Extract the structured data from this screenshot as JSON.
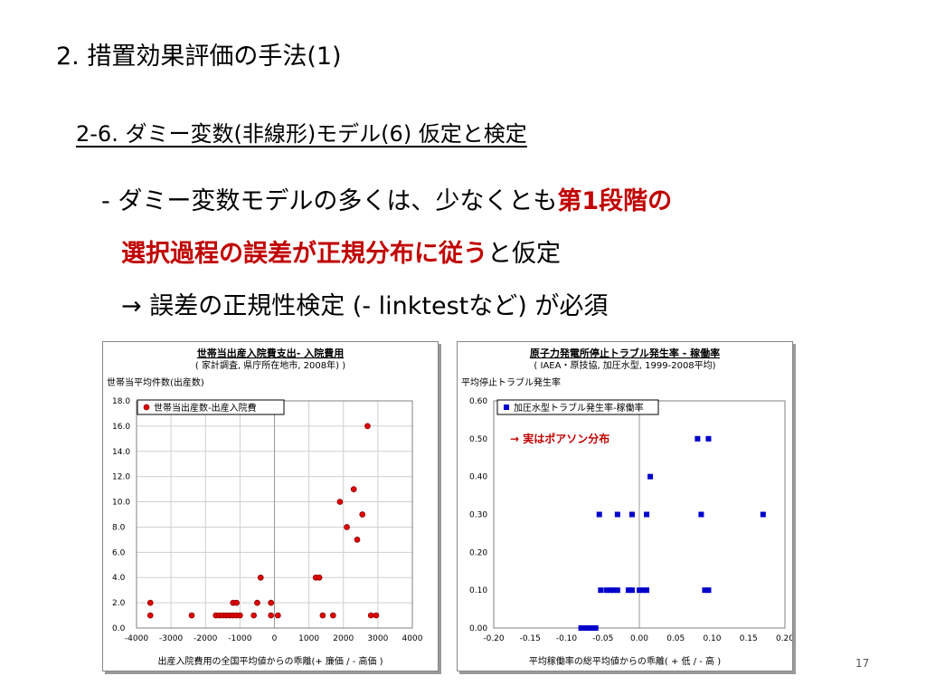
{
  "slide": {
    "title": "2. 措置効果評価の手法(1)",
    "subtitle": "2-6. ダミー変数(非線形)モデル(6) 仮定と検定",
    "bullet1_a": "- ダミー変数モデルの多くは、少なくとも",
    "bullet1_b": "第1段階の",
    "bullet2_a": "選択過程の誤差が正規分布に従う",
    "bullet2_b": "と仮定",
    "bullet3": "→ 誤差の正規性検定 (- linktestなど) が必須",
    "page_number": "17"
  },
  "chart_data": [
    {
      "type": "scatter",
      "title": "世帯当出産入院費支出- 入院費用",
      "subtitle": "( 家計調査, 県庁所在地市, 2008年) )",
      "ylabel": "世帯当平均件数(出産数)",
      "xlabel": "出産入院費用の全国平均値からの乖離(+ 廉価 / - 高価 )",
      "xlim": [
        -4000,
        4000
      ],
      "ylim": [
        0,
        18
      ],
      "xticks": [
        -4000,
        -3000,
        -2000,
        -1000,
        0,
        1000,
        2000,
        3000,
        4000
      ],
      "xtick_labels": [
        "-4000",
        "-3000",
        "-2000",
        "-1000",
        "0",
        "1000",
        "2000",
        "3000",
        "4000"
      ],
      "yticks": [
        0,
        2,
        4,
        6,
        8,
        10,
        12,
        14,
        16,
        18
      ],
      "ytick_labels": [
        "0.0",
        "2.0",
        "4.0",
        "6.0",
        "8.0",
        "10.0",
        "12.0",
        "14.0",
        "16.0",
        "18.0"
      ],
      "grid": true,
      "legend_position": "top-left",
      "marker_color": "#e00000",
      "series": [
        {
          "name": "世帯当出産数-出産入院費",
          "x": [
            -3600,
            -3600,
            -2400,
            -1700,
            -1600,
            -1500,
            -1400,
            -1300,
            -1200,
            -1100,
            -1200,
            -1100,
            -1000,
            -600,
            -500,
            -400,
            -100,
            -100,
            100,
            1200,
            1300,
            1400,
            1700,
            1900,
            2100,
            2300,
            2400,
            2550,
            2700,
            2800,
            2950
          ],
          "y": [
            1,
            2,
            1,
            1,
            1,
            1,
            1,
            1,
            1,
            1,
            2,
            2,
            1,
            1,
            2,
            4,
            1,
            2,
            1,
            4,
            4,
            1,
            1,
            10,
            8,
            11,
            7,
            9,
            16,
            1,
            1
          ]
        }
      ]
    },
    {
      "type": "scatter",
      "title": "原子力発電所停止トラブル発生率 - 稼働率",
      "subtitle": "( IAEA・原技協, 加圧水型, 1999-2008平均)",
      "ylabel": "平均停止トラブル発生率",
      "xlabel": "平均稼働率の総平均値からの乖離( + 低 / - 高 )",
      "xlim": [
        -0.2,
        0.2
      ],
      "ylim": [
        0,
        0.6
      ],
      "xticks": [
        -0.2,
        -0.15,
        -0.1,
        -0.05,
        0,
        0.05,
        0.1,
        0.15,
        0.2
      ],
      "xtick_labels": [
        "-0.20",
        "-0.15",
        "-0.10",
        "-0.05",
        "0.00",
        "0.05",
        "0.10",
        "0.15",
        "0.20"
      ],
      "yticks": [
        0,
        0.1,
        0.2,
        0.3,
        0.4,
        0.5,
        0.6
      ],
      "ytick_labels": [
        "0.00",
        "0.10",
        "0.20",
        "0.30",
        "0.40",
        "0.50",
        "0.60"
      ],
      "grid": false,
      "legend_position": "top-left",
      "marker_color": "#0000cc",
      "annotation": "→ 実はポアソン分布",
      "annotation_color": "#c00000",
      "series": [
        {
          "name": "加圧水型トラブル発生率-稼働率",
          "x": [
            -0.08,
            -0.075,
            -0.07,
            -0.065,
            -0.06,
            -0.055,
            -0.053,
            -0.045,
            -0.04,
            -0.035,
            -0.03,
            -0.03,
            -0.015,
            -0.01,
            -0.01,
            0,
            0.005,
            0.01,
            0.01,
            0.015,
            0.08,
            0.085,
            0.09,
            0.095,
            0.095,
            0.17
          ],
          "y": [
            0,
            0,
            0,
            0,
            0,
            0.3,
            0.1,
            0.1,
            0.1,
            0.1,
            0.1,
            0.3,
            0.1,
            0.3,
            0.1,
            0.1,
            0.1,
            0.1,
            0.3,
            0.4,
            0.5,
            0.3,
            0.1,
            0.5,
            0.1,
            0.3
          ]
        }
      ]
    }
  ]
}
